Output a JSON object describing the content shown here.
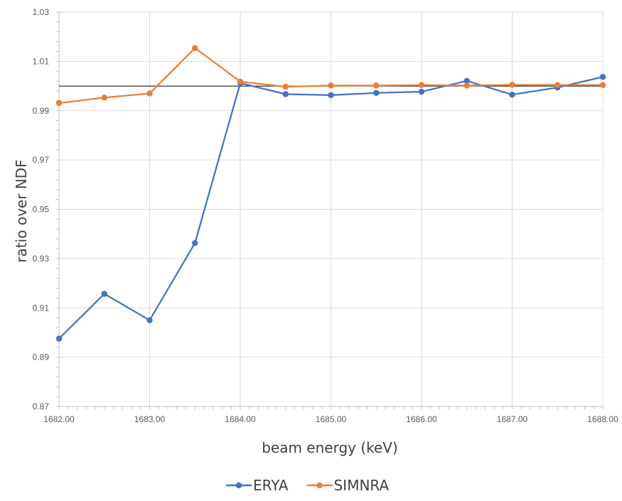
{
  "chart_data": {
    "type": "line",
    "xlabel": "beam energy (keV)",
    "ylabel": "ratio over NDF",
    "xlim": [
      1682.0,
      1688.0
    ],
    "ylim": [
      0.87,
      1.03
    ],
    "x_ticks": [
      "1682.00",
      "1683.00",
      "1684.00",
      "1685.00",
      "1686.00",
      "1687.00",
      "1688.00"
    ],
    "y_ticks": [
      "0.87",
      "0.89",
      "0.91",
      "0.93",
      "0.95",
      "0.97",
      "0.99",
      "1.01",
      "1.03"
    ],
    "grid": true,
    "reference_line": 1.0,
    "legend_position": "bottom",
    "x": [
      1682.0,
      1682.5,
      1683.0,
      1683.5,
      1684.0,
      1684.5,
      1685.0,
      1685.5,
      1686.0,
      1686.5,
      1687.0,
      1687.5,
      1688.0
    ],
    "series": [
      {
        "name": "ERYA",
        "color": "#4472C4",
        "values": [
          0.8975,
          0.9157,
          0.905,
          0.9363,
          1.0012,
          0.9967,
          0.9963,
          0.9972,
          0.9977,
          1.0021,
          0.9965,
          0.9994,
          1.0037
        ]
      },
      {
        "name": "SIMNRA",
        "color": "#ED7D31",
        "values": [
          0.9931,
          0.9953,
          0.997,
          1.0154,
          1.0018,
          0.9997,
          1.0002,
          1.0002,
          1.0004,
          1.0002,
          1.0005,
          1.0004,
          1.0004
        ]
      }
    ]
  }
}
